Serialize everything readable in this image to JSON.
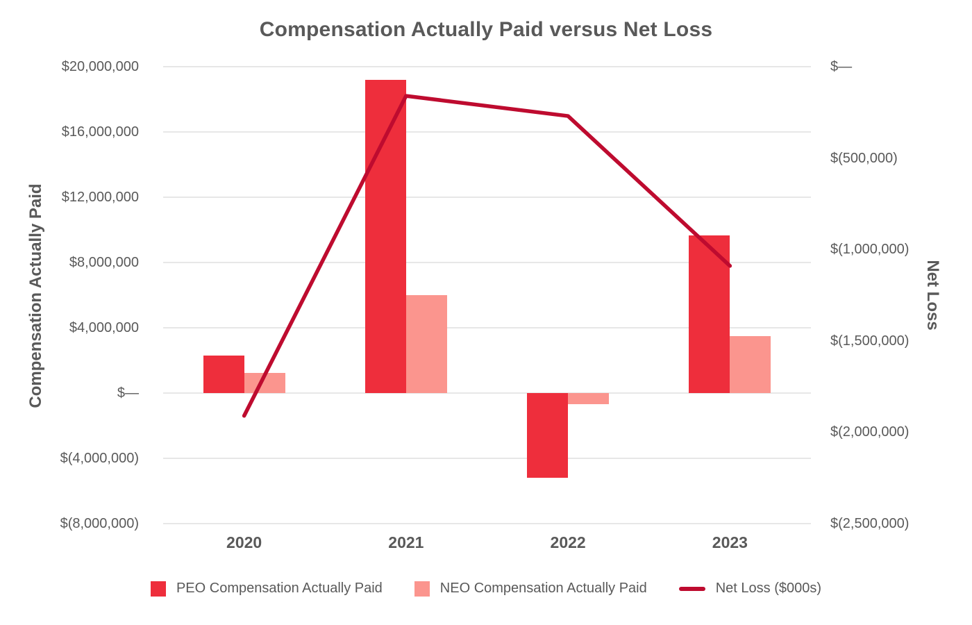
{
  "chart_data": {
    "type": "combo-bar-line",
    "title": "Compensation Actually Paid versus Net Loss",
    "categories": [
      "2020",
      "2021",
      "2022",
      "2023"
    ],
    "series": [
      {
        "name": "PEO Compensation Actually Paid",
        "type": "bar",
        "axis": "left",
        "color": "#EE2E3C",
        "values": [
          2300000,
          19200000,
          -5200000,
          9650000
        ]
      },
      {
        "name": "NEO Compensation Actually Paid",
        "type": "bar",
        "axis": "left",
        "color": "#FB958E",
        "values": [
          1250000,
          6000000,
          -700000,
          3500000
        ]
      },
      {
        "name": "Net Loss ($000s)",
        "type": "line",
        "axis": "right",
        "color": "#BE0B2F",
        "values": [
          -1910000,
          -160000,
          -270000,
          -1090000
        ]
      }
    ],
    "left_axis": {
      "title": "Compensation Actually Paid",
      "max": 20000000,
      "min": -8000000,
      "ticks": [
        {
          "value": 20000000,
          "label": "$20,000,000"
        },
        {
          "value": 16000000,
          "label": "$16,000,000"
        },
        {
          "value": 12000000,
          "label": "$12,000,000"
        },
        {
          "value": 8000000,
          "label": "$8,000,000"
        },
        {
          "value": 4000000,
          "label": "$4,000,000"
        },
        {
          "value": 0,
          "label": "$—"
        },
        {
          "value": -4000000,
          "label": "$(4,000,000)"
        },
        {
          "value": -8000000,
          "label": "$(8,000,000)"
        }
      ]
    },
    "right_axis": {
      "title": "Net Loss",
      "max": 0,
      "min": -2500000,
      "ticks": [
        {
          "value": 0,
          "label": "$—"
        },
        {
          "value": -500000,
          "label": "$(500,000)"
        },
        {
          "value": -1000000,
          "label": "$(1,000,000)"
        },
        {
          "value": -1500000,
          "label": "$(1,500,000)"
        },
        {
          "value": -2000000,
          "label": "$(2,000,000)"
        },
        {
          "value": -2500000,
          "label": "$(2,500,000)"
        }
      ]
    },
    "legend_position": "bottom",
    "grid": true,
    "text_color": "#595959",
    "grid_color": "#E7E7E7",
    "background_color": "#FFFFFF"
  }
}
